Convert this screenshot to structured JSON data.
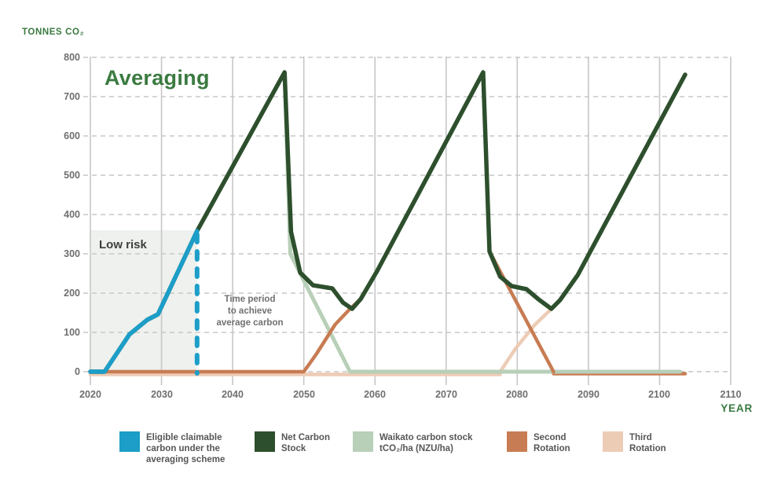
{
  "header": {
    "tonnes_label": "TONNES CO₂",
    "year_label": "YEAR",
    "title": "Averaging"
  },
  "annotations": {
    "low_risk": "Low risk",
    "time_period": "Time period\nto achieve\naverage carbon"
  },
  "colors": {
    "green_text": "#3a7a40",
    "blue": "#1c9ec8",
    "dark_green": "#2d4f2d",
    "light_green": "#b8cfb8",
    "orange": "#c87c53",
    "pink": "#edccb6",
    "grid": "#c7c7c7",
    "axis_text": "#6f6f6f",
    "low_risk_fill": "#eef1ee"
  },
  "chart_data": {
    "type": "line",
    "title": "Averaging",
    "xlabel": "YEAR",
    "ylabel": "TONNES CO₂",
    "xlim": [
      2020,
      2110
    ],
    "ylim": [
      0,
      800
    ],
    "x_ticks": [
      2020,
      2030,
      2040,
      2050,
      2060,
      2070,
      2080,
      2090,
      2100,
      2110
    ],
    "y_ticks": [
      0,
      100,
      200,
      300,
      400,
      500,
      600,
      700,
      800
    ],
    "grid": "horizontal dashed, vertical solid",
    "legend_position": "bottom",
    "low_risk_region": {
      "years": [
        2020,
        2035
      ],
      "values": [
        0,
        360
      ]
    },
    "averaging_dotted_line": {
      "year": 2035,
      "values": [
        0,
        350
      ]
    },
    "series": [
      {
        "id": "third_flat",
        "name": "Third Rotation (pre-planting, zero stock)",
        "color_key": "pink",
        "points": [
          [
            2020,
            0
          ],
          [
            2077.6,
            0
          ]
        ]
      },
      {
        "id": "third",
        "name": "Third Rotation",
        "color_key": "pink",
        "points": [
          [
            2077.6,
            0
          ],
          [
            2079.8,
            60
          ],
          [
            2082.5,
            120
          ],
          [
            2084.8,
            160
          ],
          [
            2086,
            182
          ],
          [
            2088.5,
            246
          ],
          [
            2103.6,
            756
          ]
        ]
      },
      {
        "id": "second_tail",
        "name": "Second Rotation (post-harvest, zero stock)",
        "color_key": "orange",
        "points": [
          [
            2085.1,
            0
          ],
          [
            2103.6,
            0
          ]
        ]
      },
      {
        "id": "waikato",
        "name": "Waikato carbon stock tCO₂/ha (NZU/ha)",
        "color_key": "light_green",
        "points": [
          [
            2020,
            0
          ],
          [
            2022,
            0
          ],
          [
            2025.5,
            95
          ],
          [
            2028,
            132
          ],
          [
            2029.5,
            146
          ],
          [
            2035,
            358
          ],
          [
            2047.3,
            762
          ],
          [
            2048.1,
            300
          ],
          [
            2056.5,
            0
          ],
          [
            2102.9,
            0
          ]
        ]
      },
      {
        "id": "second",
        "name": "Second Rotation",
        "color_key": "orange",
        "points": [
          [
            2020,
            0
          ],
          [
            2050,
            0
          ],
          [
            2051.8,
            46
          ],
          [
            2054.4,
            120
          ],
          [
            2056.5,
            160
          ],
          [
            2058,
            185
          ],
          [
            2060.3,
            256
          ],
          [
            2075.2,
            762
          ],
          [
            2076.1,
            306
          ],
          [
            2085.1,
            0
          ]
        ]
      },
      {
        "id": "net",
        "name": "Net Carbon Stock",
        "color_key": "dark_green",
        "points": [
          [
            2020,
            0
          ],
          [
            2022,
            0
          ],
          [
            2025.5,
            95
          ],
          [
            2028,
            132
          ],
          [
            2029.5,
            146
          ],
          [
            2035,
            358
          ],
          [
            2047.3,
            762
          ],
          [
            2048.2,
            356
          ],
          [
            2049.5,
            252
          ],
          [
            2051.3,
            220
          ],
          [
            2054,
            212
          ],
          [
            2055.5,
            176
          ],
          [
            2056.8,
            160
          ],
          [
            2058,
            185
          ],
          [
            2060.3,
            256
          ],
          [
            2075.2,
            762
          ],
          [
            2076.1,
            306
          ],
          [
            2077.6,
            242
          ],
          [
            2079.2,
            218
          ],
          [
            2081.3,
            210
          ],
          [
            2083,
            184
          ],
          [
            2084.8,
            160
          ],
          [
            2086,
            182
          ],
          [
            2088.5,
            246
          ],
          [
            2103.6,
            756
          ]
        ]
      },
      {
        "id": "eligible",
        "name": "Eligible claimable carbon under the averaging scheme",
        "color_key": "blue",
        "points": [
          [
            2020,
            0
          ],
          [
            2022,
            0
          ],
          [
            2025.5,
            95
          ],
          [
            2028,
            132
          ],
          [
            2029.5,
            146
          ],
          [
            2035,
            358
          ]
        ]
      }
    ]
  },
  "legend": {
    "items": [
      {
        "label": "Eligible claimable\ncarbon under the\naveraging scheme",
        "color_key": "blue"
      },
      {
        "label": "Net Carbon\nStock",
        "color_key": "dark_green"
      },
      {
        "label": "Waikato carbon stock\ntCO₂/ha (NZU/ha)",
        "color_key": "light_green"
      },
      {
        "label": "Second\nRotation",
        "color_key": "orange"
      },
      {
        "label": "Third\nRotation",
        "color_key": "pink"
      }
    ]
  }
}
